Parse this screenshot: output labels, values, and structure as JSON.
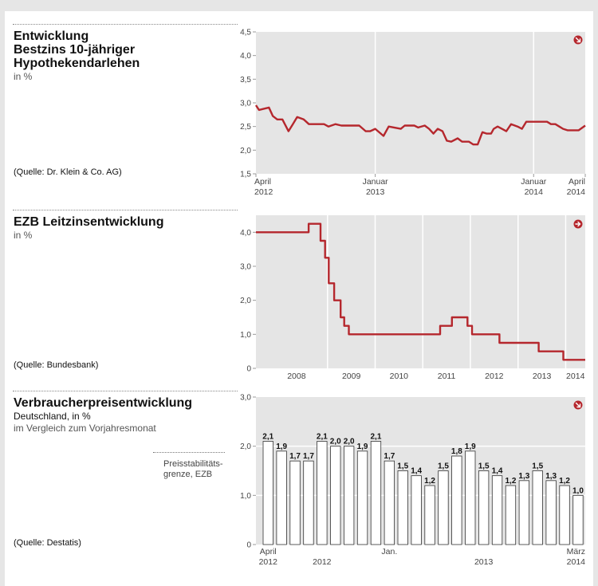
{
  "colors": {
    "line": "#b5272d",
    "plot_bg": "#e5e5e5",
    "page_bg": "#e6e6e6",
    "bar_fill": "#ffffff",
    "bar_stroke": "#333333"
  },
  "icons": [
    "arrow-down-right-icon",
    "arrow-right-icon"
  ],
  "charts": {
    "mortgage": {
      "title_lines": [
        "Entwicklung",
        "Bestzins 10-jähriger",
        "Hypothekendarlehen"
      ],
      "subtitle": "in %",
      "source": "(Quelle: Dr. Klein & Co. AG)",
      "x_ticks": [
        {
          "line1": "April",
          "line2": "2012"
        },
        {
          "line1": "Januar",
          "line2": "2013"
        },
        {
          "line1": "Januar",
          "line2": "2014"
        },
        {
          "line1": "April",
          "line2": "2014"
        }
      ]
    },
    "ezb": {
      "title_lines": [
        "EZB Leitzinsentwicklung"
      ],
      "subtitle": "in %",
      "source": "(Quelle: Bundesbank)"
    },
    "vpi": {
      "title_lines": [
        "Verbraucherpreisentwicklung"
      ],
      "subtitle_lines": [
        "Deutschland, in %",
        "im Vergleich zum Vorjahresmonat"
      ],
      "note_lines": [
        "Preisstabilitäts-",
        "grenze, EZB"
      ],
      "source": "(Quelle: Destatis)",
      "x_labels": [
        {
          "line1": "April",
          "line2": "2012"
        },
        {
          "line1": "",
          "line2": "2012"
        },
        {
          "line1": "Jan.",
          "line2": ""
        },
        {
          "line1": "",
          "line2": "2013"
        },
        {
          "line1": "März",
          "line2": "2014"
        }
      ]
    }
  },
  "chart_data": [
    {
      "type": "line",
      "title": "Entwicklung Bestzins 10-jähriger Hypothekendarlehen",
      "ylabel": "in %",
      "ylim": [
        1.5,
        4.5
      ],
      "yticks": [
        "1,5",
        "2,0",
        "2,5",
        "3,0",
        "3,5",
        "4,0",
        "4,5"
      ],
      "ytick_values": [
        1.5,
        2.0,
        2.5,
        3.0,
        3.5,
        4.0,
        4.5
      ],
      "x_range": [
        "2012-04-01",
        "2014-04-30"
      ],
      "gridlines_x": [
        "2013-01-01",
        "2014-01-01"
      ],
      "series": [
        {
          "dates": [
            "2012-04-01",
            "2012-04-08",
            "2012-04-22",
            "2012-05-01",
            "2012-05-10",
            "2012-05-20",
            "2012-06-01",
            "2012-06-15",
            "2012-06-25",
            "2012-07-05",
            "2012-07-20",
            "2012-08-01",
            "2012-08-25",
            "2012-09-05",
            "2012-09-15",
            "2012-10-01",
            "2012-10-15",
            "2012-11-01",
            "2012-11-15",
            "2012-11-25",
            "2012-12-10",
            "2012-12-20",
            "2013-01-01",
            "2013-01-20",
            "2013-02-01",
            "2013-03-01",
            "2013-03-10",
            "2013-03-20",
            "2013-04-01",
            "2013-04-10",
            "2013-04-25",
            "2013-05-05",
            "2013-05-15",
            "2013-05-25",
            "2013-06-05",
            "2013-06-15",
            "2013-06-25",
            "2013-07-10",
            "2013-07-20",
            "2013-08-05",
            "2013-08-15",
            "2013-08-25",
            "2013-09-05",
            "2013-09-15",
            "2013-09-25",
            "2013-10-01",
            "2013-10-10",
            "2013-10-20",
            "2013-10-30",
            "2013-11-10",
            "2013-11-25",
            "2013-12-05",
            "2013-12-15",
            "2013-12-28",
            "2014-01-10",
            "2014-01-20",
            "2014-02-01",
            "2014-02-10",
            "2014-02-20",
            "2014-03-01",
            "2014-03-10",
            "2014-03-20",
            "2014-04-01",
            "2014-04-15",
            "2014-04-30"
          ],
          "values": [
            2.95,
            2.85,
            2.88,
            2.9,
            2.72,
            2.65,
            2.65,
            2.4,
            2.55,
            2.7,
            2.65,
            2.55,
            2.55,
            2.55,
            2.5,
            2.55,
            2.52,
            2.52,
            2.52,
            2.52,
            2.4,
            2.4,
            2.45,
            2.3,
            2.5,
            2.45,
            2.52,
            2.52,
            2.52,
            2.48,
            2.52,
            2.45,
            2.35,
            2.45,
            2.4,
            2.2,
            2.18,
            2.25,
            2.18,
            2.18,
            2.12,
            2.12,
            2.38,
            2.35,
            2.35,
            2.45,
            2.5,
            2.45,
            2.4,
            2.55,
            2.5,
            2.45,
            2.6,
            2.6,
            2.6,
            2.6,
            2.6,
            2.55,
            2.55,
            2.5,
            2.45,
            2.42,
            2.42,
            2.42,
            2.52
          ]
        }
      ]
    },
    {
      "type": "line",
      "title": "EZB Leitzinsentwicklung",
      "ylabel": "in %",
      "ylim": [
        0,
        4.5
      ],
      "yticks": [
        "0",
        "1,0",
        "2,0",
        "3,0",
        "4,0"
      ],
      "ytick_values": [
        0,
        1.0,
        2.0,
        3.0,
        4.0
      ],
      "xticks": [
        "2008",
        "2009",
        "2010",
        "2011",
        "2012",
        "2013",
        "2014"
      ],
      "x_range": [
        "2007-06-01",
        "2014-04-30"
      ],
      "gridlines_x": [
        "2008-12-01",
        "2009-12-01",
        "2010-12-01",
        "2011-12-01",
        "2012-12-01",
        "2013-12-01"
      ],
      "series": [
        {
          "dates": [
            "2007-06-01",
            "2008-07-09",
            "2008-10-08",
            "2008-11-12",
            "2008-12-10",
            "2009-01-21",
            "2009-03-11",
            "2009-04-08",
            "2009-05-13",
            "2011-04-13",
            "2011-07-13",
            "2011-11-09",
            "2011-12-14",
            "2012-07-11",
            "2013-05-08",
            "2013-11-13",
            "2014-04-30"
          ],
          "values": [
            4.0,
            4.25,
            3.75,
            3.25,
            2.5,
            2.0,
            1.5,
            1.25,
            1.0,
            1.25,
            1.5,
            1.25,
            1.0,
            0.75,
            0.5,
            0.25,
            0.25
          ]
        }
      ]
    },
    {
      "type": "bar",
      "title": "Verbraucherpreisentwicklung",
      "subtitle": "Deutschland, in % im Vergleich zum Vorjahresmonat",
      "ylim": [
        0,
        3.0
      ],
      "yticks": [
        "0",
        "1,0",
        "2,0",
        "3,0"
      ],
      "ytick_values": [
        0,
        1.0,
        2.0,
        3.0
      ],
      "reference_line": 2.0,
      "categories": [
        "2012-04",
        "2012-05",
        "2012-06",
        "2012-07",
        "2012-08",
        "2012-09",
        "2012-10",
        "2012-11",
        "2012-12",
        "2013-01",
        "2013-02",
        "2013-03",
        "2013-04",
        "2013-05",
        "2013-06",
        "2013-07",
        "2013-08",
        "2013-09",
        "2013-10",
        "2013-11",
        "2013-12",
        "2014-01",
        "2014-02",
        "2014-03"
      ],
      "values": [
        2.1,
        1.9,
        1.7,
        1.7,
        2.1,
        2.0,
        2.0,
        1.9,
        2.1,
        1.7,
        1.5,
        1.4,
        1.2,
        1.5,
        1.8,
        1.9,
        1.5,
        1.4,
        1.2,
        1.3,
        1.5,
        1.3,
        1.2,
        1.0
      ],
      "value_labels": [
        "2,1",
        "1,9",
        "1,7",
        "1,7",
        "2,1",
        "2,0",
        "2,0",
        "1,9",
        "2,1",
        "1,7",
        "1,5",
        "1,4",
        "1,2",
        "1,5",
        "1,8",
        "1,9",
        "1,5",
        "1,4",
        "1,2",
        "1,3",
        "1,5",
        "1,3",
        "1,2",
        "1,0"
      ]
    }
  ]
}
